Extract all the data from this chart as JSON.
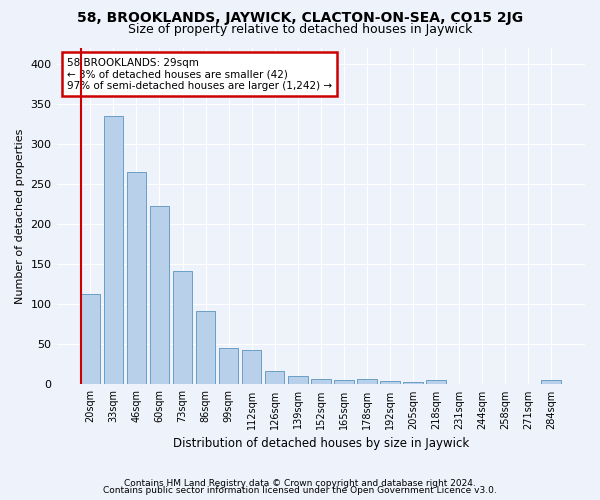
{
  "title": "58, BROOKLANDS, JAYWICK, CLACTON-ON-SEA, CO15 2JG",
  "subtitle": "Size of property relative to detached houses in Jaywick",
  "xlabel": "Distribution of detached houses by size in Jaywick",
  "ylabel": "Number of detached properties",
  "bar_color": "#b8d0ea",
  "bar_edge_color": "#6a9ec5",
  "background_color": "#eef2fb",
  "grid_color": "#ffffff",
  "categories": [
    "20sqm",
    "33sqm",
    "46sqm",
    "60sqm",
    "73sqm",
    "86sqm",
    "99sqm",
    "112sqm",
    "126sqm",
    "139sqm",
    "152sqm",
    "165sqm",
    "178sqm",
    "192sqm",
    "205sqm",
    "218sqm",
    "231sqm",
    "244sqm",
    "258sqm",
    "271sqm",
    "284sqm"
  ],
  "values": [
    113,
    334,
    265,
    222,
    141,
    91,
    45,
    43,
    17,
    10,
    7,
    5,
    7,
    4,
    3,
    5,
    0,
    0,
    0,
    0,
    5
  ],
  "highlight_bar_index": 0,
  "highlight_color": "#cc0000",
  "annotation_text": "58 BROOKLANDS: 29sqm\n← 3% of detached houses are smaller (42)\n97% of semi-detached houses are larger (1,242) →",
  "annotation_box_color": "#ffffff",
  "annotation_border_color": "#cc0000",
  "ylim": [
    0,
    420
  ],
  "yticks": [
    0,
    50,
    100,
    150,
    200,
    250,
    300,
    350,
    400
  ],
  "footer1": "Contains HM Land Registry data © Crown copyright and database right 2024.",
  "footer2": "Contains public sector information licensed under the Open Government Licence v3.0."
}
